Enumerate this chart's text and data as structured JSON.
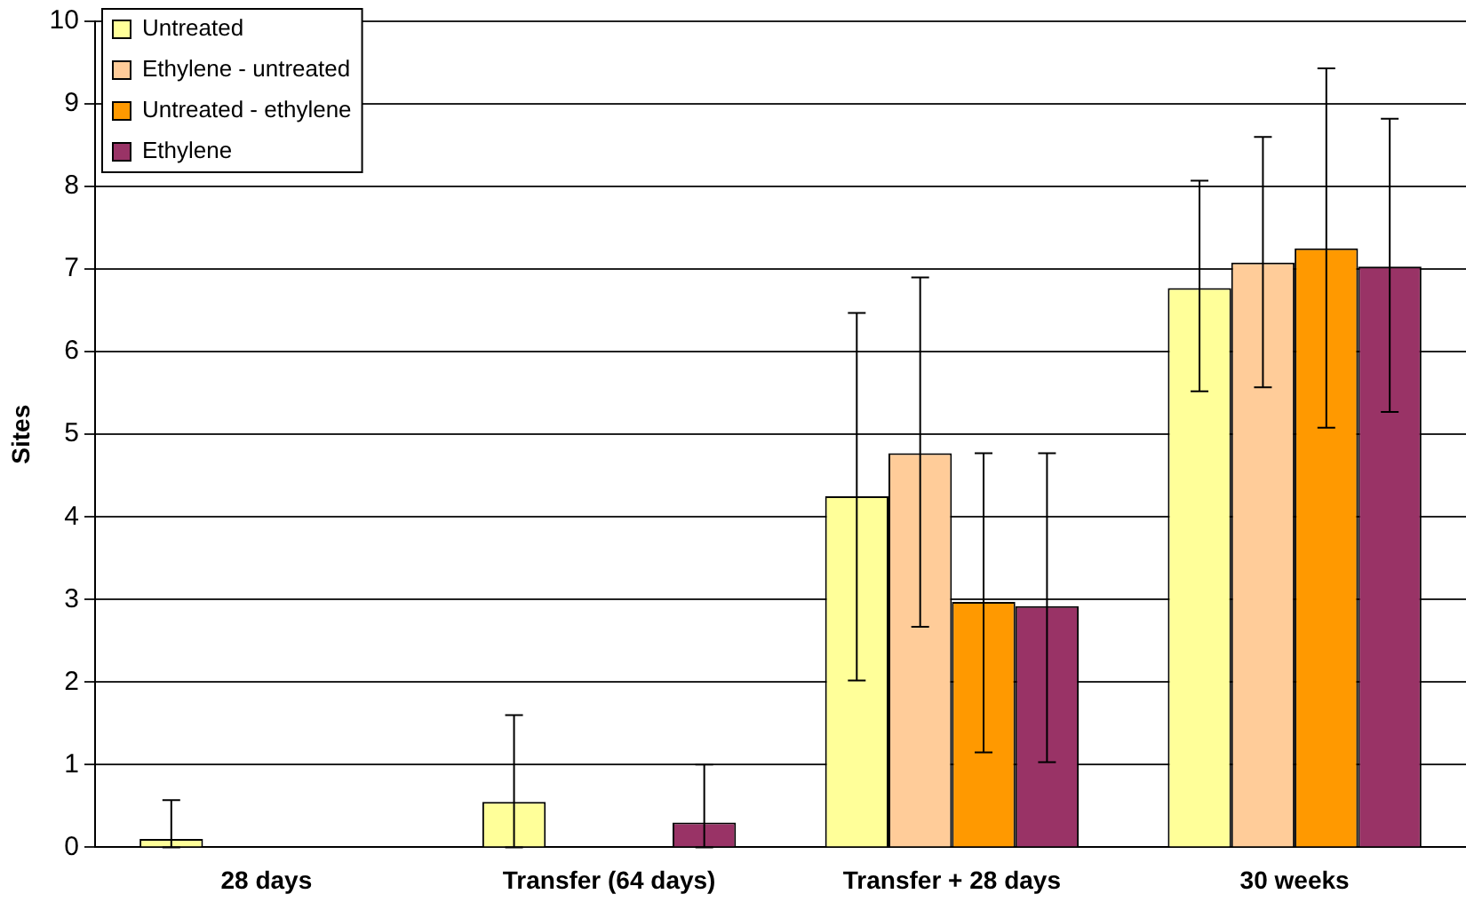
{
  "chart_data": {
    "type": "bar",
    "ylabel": "Sites",
    "categories": [
      "28 days",
      "Transfer (64 days)",
      "Transfer + 28 days",
      "30 weeks"
    ],
    "series": [
      {
        "name": "Untreated",
        "color": "#ffff99",
        "values": [
          0.1,
          0.55,
          4.25,
          6.77
        ],
        "errors": [
          [
            0,
            0.57
          ],
          [
            0,
            1.6
          ],
          [
            2.02,
            6.47
          ],
          [
            5.52,
            8.07
          ]
        ]
      },
      {
        "name": "Ethylene - untreated",
        "color": "#ffcc99",
        "values": [
          0,
          0,
          4.77,
          7.08
        ],
        "errors": [
          null,
          null,
          [
            2.67,
            6.9
          ],
          [
            5.57,
            8.6
          ]
        ]
      },
      {
        "name": "Untreated - ethylene",
        "color": "#ff9900",
        "values": [
          0,
          0,
          2.97,
          7.25
        ],
        "errors": [
          null,
          null,
          [
            1.15,
            4.77
          ],
          [
            5.08,
            9.43
          ]
        ]
      },
      {
        "name": "Ethylene",
        "color": "#993366",
        "values": [
          0,
          0.3,
          2.92,
          7.03
        ],
        "errors": [
          null,
          [
            0,
            1.0
          ],
          [
            1.03,
            4.77
          ],
          [
            5.27,
            8.82
          ]
        ]
      }
    ],
    "ylim": [
      0,
      10
    ],
    "yticks": [
      0,
      1,
      2,
      3,
      4,
      5,
      6,
      7,
      8,
      9,
      10
    ],
    "grid": "y",
    "legend": "top left"
  }
}
